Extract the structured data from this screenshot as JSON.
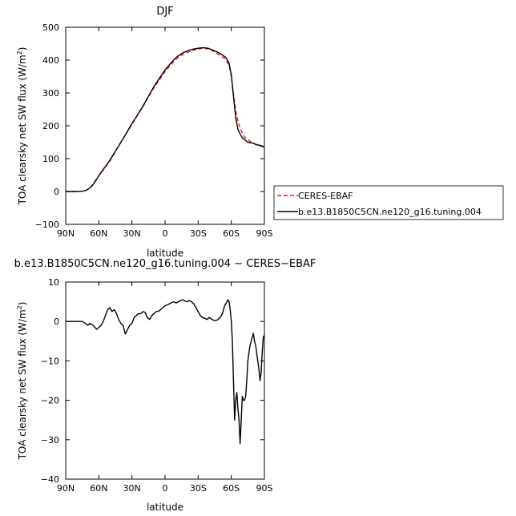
{
  "chart_data": [
    {
      "type": "line",
      "title": "DJF",
      "xlabel": "latitude",
      "ylabel": "TOA clearsky net SW flux (W/m",
      "ylabel_sup": "2",
      "ylabel_tail": ")",
      "xlim": [
        -90,
        90
      ],
      "ylim": [
        -100,
        500
      ],
      "x_ticks": [
        -90,
        -60,
        -30,
        0,
        30,
        60,
        90
      ],
      "x_tick_labels": [
        "90N",
        "60N",
        "30N",
        "0",
        "30S",
        "60S",
        "90S"
      ],
      "y_ticks": [
        -100,
        0,
        100,
        200,
        300,
        400,
        500
      ],
      "y_tick_labels": [
        "−100",
        "0",
        "100",
        "200",
        "300",
        "400",
        "500"
      ],
      "legend_position": "outside-right",
      "series": [
        {
          "name": "CERES-EBAF",
          "color": "#e31a1c",
          "dash": "dashed",
          "x": [
            -90,
            -85,
            -80,
            -75,
            -72,
            -70,
            -67,
            -65,
            -62,
            -60,
            -55,
            -50,
            -45,
            -40,
            -35,
            -30,
            -25,
            -20,
            -15,
            -10,
            -5,
            0,
            5,
            10,
            15,
            20,
            25,
            30,
            35,
            40,
            45,
            50,
            55,
            58,
            60,
            62,
            64,
            66,
            68,
            70,
            72,
            75,
            78,
            80,
            82,
            85,
            88,
            90
          ],
          "y": [
            0,
            0,
            0,
            1,
            3,
            7,
            15,
            24,
            38,
            48,
            70,
            93,
            122,
            150,
            177,
            204,
            232,
            258,
            288,
            316,
            340,
            365,
            385,
            403,
            415,
            423,
            430,
            433,
            437,
            433,
            425,
            414,
            402,
            384,
            350,
            295,
            245,
            215,
            192,
            178,
            166,
            158,
            150,
            147,
            144,
            142,
            139,
            138
          ]
        },
        {
          "name": "b.e13.B1850C5CN.ne120_g16.tuning.004",
          "color": "#000000",
          "dash": "solid",
          "x": [
            -90,
            -85,
            -80,
            -75,
            -72,
            -70,
            -67,
            -65,
            -62,
            -60,
            -55,
            -50,
            -45,
            -40,
            -35,
            -30,
            -25,
            -20,
            -15,
            -10,
            -5,
            0,
            5,
            10,
            15,
            20,
            25,
            30,
            35,
            40,
            45,
            50,
            55,
            58,
            60,
            62,
            64,
            66,
            68,
            70,
            72,
            75,
            78,
            80,
            82,
            85,
            88,
            90
          ],
          "y": [
            0,
            0,
            0,
            1,
            3,
            6,
            14,
            22,
            37,
            48,
            72,
            95,
            123,
            150,
            178,
            207,
            233,
            260,
            290,
            320,
            345,
            370,
            390,
            408,
            420,
            428,
            433,
            436,
            438,
            435,
            428,
            420,
            408,
            390,
            355,
            290,
            225,
            190,
            175,
            164,
            158,
            150,
            148,
            147,
            143,
            141,
            137,
            135
          ]
        }
      ]
    },
    {
      "type": "line",
      "title": "b.e13.B1850C5CN.ne120_g16.tuning.004 − CERES−EBAF",
      "xlabel": "latitude",
      "ylabel": "TOA clearsky net SW flux (W/m",
      "ylabel_sup": "2",
      "ylabel_tail": ")",
      "xlim": [
        -90,
        90
      ],
      "ylim": [
        -40,
        10
      ],
      "x_ticks": [
        -90,
        -60,
        -30,
        0,
        30,
        60,
        90
      ],
      "x_tick_labels": [
        "90N",
        "60N",
        "30N",
        "0",
        "30S",
        "60S",
        "90S"
      ],
      "y_ticks": [
        -40,
        -30,
        -20,
        -10,
        0,
        10
      ],
      "y_tick_labels": [
        "−40",
        "−30",
        "−20",
        "−10",
        "0",
        "10"
      ],
      "series": [
        {
          "name": "",
          "color": "#000000",
          "dash": "solid",
          "x": [
            -90,
            -80,
            -75,
            -72,
            -70,
            -68,
            -65,
            -62,
            -60,
            -58,
            -56,
            -54,
            -52,
            -50,
            -48,
            -46,
            -44,
            -42,
            -40,
            -38,
            -36,
            -34,
            -32,
            -30,
            -28,
            -26,
            -24,
            -22,
            -20,
            -18,
            -16,
            -14,
            -12,
            -10,
            -8,
            -6,
            -4,
            -2,
            0,
            2,
            4,
            6,
            8,
            10,
            12,
            14,
            16,
            18,
            20,
            22,
            24,
            26,
            28,
            30,
            32,
            34,
            36,
            38,
            40,
            42,
            44,
            46,
            48,
            50,
            52,
            54,
            56,
            57,
            58,
            59,
            60,
            61,
            62,
            63,
            64,
            65,
            66,
            67,
            68,
            69,
            70,
            71,
            72,
            73,
            74,
            75,
            76,
            77,
            78,
            79,
            80,
            81,
            82,
            83,
            84,
            85,
            86,
            87,
            88,
            89,
            90
          ],
          "y": [
            0,
            0,
            0,
            -0.5,
            -1,
            -0.5,
            -1,
            -2,
            -1.5,
            -1,
            0,
            1.5,
            3,
            3.5,
            2.5,
            3,
            2,
            0.5,
            -0.5,
            -1,
            -3.2,
            -2,
            -1,
            -0.5,
            1,
            1.5,
            2,
            2,
            2.5,
            2.3,
            1,
            0.5,
            1.5,
            2,
            2.5,
            2.6,
            3,
            3.5,
            4,
            4.2,
            4.5,
            4.8,
            5,
            4.7,
            5,
            5.3,
            5.5,
            5.2,
            5,
            5.3,
            5,
            4.5,
            3.5,
            2.5,
            1.5,
            1,
            0.8,
            0.5,
            1,
            0.6,
            0.3,
            0.2,
            0.5,
            1,
            2,
            4,
            5,
            5.5,
            5,
            3,
            0,
            -5,
            -15,
            -25,
            -20,
            -18,
            -22,
            -25,
            -31,
            -25,
            -19,
            -20,
            -20,
            -19,
            -15,
            -10,
            -8,
            -6,
            -5,
            -4,
            -3,
            -5,
            -6,
            -8,
            -10,
            -12,
            -15,
            -13,
            -8,
            -4,
            -3.5
          ]
        }
      ]
    }
  ]
}
